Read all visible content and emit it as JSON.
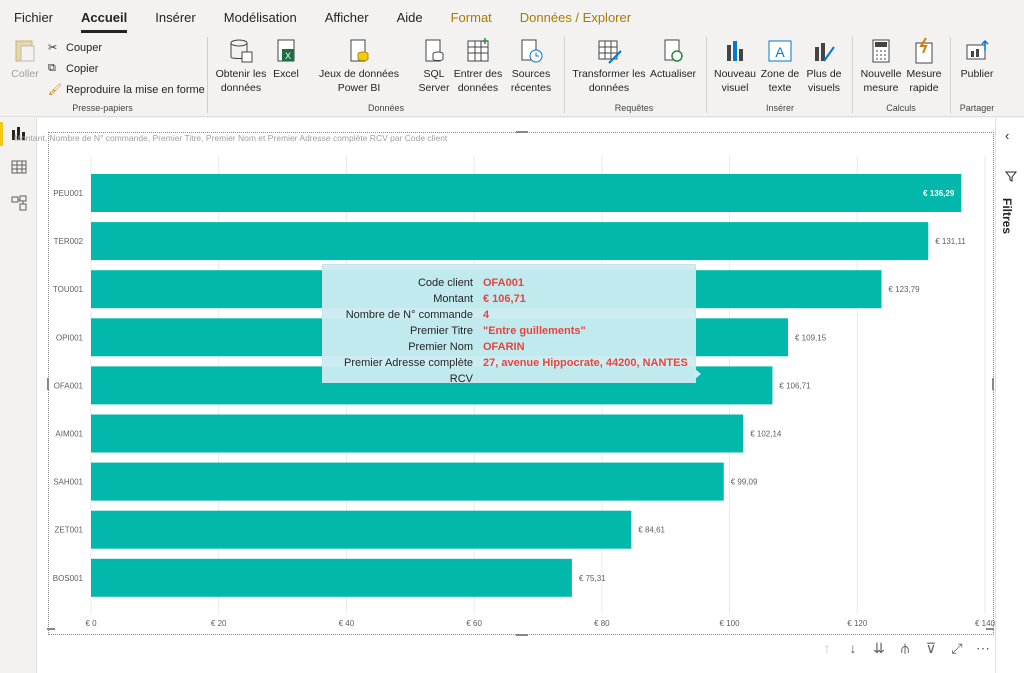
{
  "menu": {
    "items": [
      "Fichier",
      "Accueil",
      "Insérer",
      "Modélisation",
      "Afficher",
      "Aide"
    ],
    "context_items": [
      "Format",
      "Données / Explorer"
    ],
    "active": "Accueil"
  },
  "ribbon": {
    "clipboard": {
      "paste": "Coller",
      "cut": "Couper",
      "copy": "Copier",
      "format_painter": "Reproduire la mise en forme",
      "label": "Presse-papiers"
    },
    "data": {
      "get_data": "Obtenir les données",
      "excel": "Excel",
      "powerbi": "Jeux de données Power BI",
      "sql": "SQL Server",
      "enter": "Entrer des données",
      "recent": "Sources récentes",
      "label": "Données"
    },
    "queries": {
      "transform": "Transformer les données",
      "refresh": "Actualiser",
      "label": "Requêtes"
    },
    "insert": {
      "new_visual": "Nouveau visuel",
      "textbox": "Zone de texte",
      "more_visuals": "Plus de visuels",
      "label": "Insérer"
    },
    "calc": {
      "new_measure": "Nouvelle mesure",
      "quick_measure": "Mesure rapide",
      "label": "Calculs"
    },
    "share": {
      "publish": "Publier",
      "label": "Partager"
    }
  },
  "filters_pane": {
    "label": "Filtres"
  },
  "visual": {
    "title": "Montant, Nombre de N° commande, Premier Titre, Premier Nom et Premier Adresse complète RCV par Code client"
  },
  "chart_data": {
    "type": "bar",
    "orientation": "horizontal",
    "categories": [
      "PEU001",
      "TER002",
      "TOU001",
      "OPI001",
      "OFA001",
      "AIM001",
      "SAH001",
      "ZET001",
      "BOS001"
    ],
    "values": [
      136.29,
      131.11,
      123.79,
      109.15,
      106.71,
      102.14,
      99.09,
      84.61,
      75.31
    ],
    "value_labels": [
      "€ 136,29",
      "€ 131,11",
      "€ 123,79",
      "€ 109,15",
      "€ 106,71",
      "€ 102,14",
      "€ 99,09",
      "€ 84,61",
      "€ 75,31"
    ],
    "x_ticks": [
      0,
      20,
      40,
      60,
      80,
      100,
      120,
      140
    ],
    "x_tick_labels": [
      "€ 0",
      "€ 20",
      "€ 40",
      "€ 60",
      "€ 80",
      "€ 100",
      "€ 120",
      "€ 140"
    ],
    "xlim": [
      0,
      140
    ],
    "color": "#01b8aa",
    "grid": true
  },
  "tooltip": {
    "rows": [
      {
        "key": "Code client",
        "value": "OFA001"
      },
      {
        "key": "Montant",
        "value": "€ 106,71"
      },
      {
        "key": "Nombre de N° commande",
        "value": "4"
      },
      {
        "key": "Premier Titre",
        "value": "\"Entre guillements\""
      },
      {
        "key": "Premier Nom",
        "value": "OFARIN"
      },
      {
        "key": "Premier Adresse complète RCV",
        "value": "27, avenue Hippocrate, 44200, NANTES"
      }
    ]
  },
  "bottom_icons": [
    "arrow-up-icon",
    "arrow-down-icon",
    "double-arrow-down-icon",
    "expand-hierarchy-icon",
    "filter-icon",
    "focus-mode-icon",
    "more-options-icon"
  ]
}
